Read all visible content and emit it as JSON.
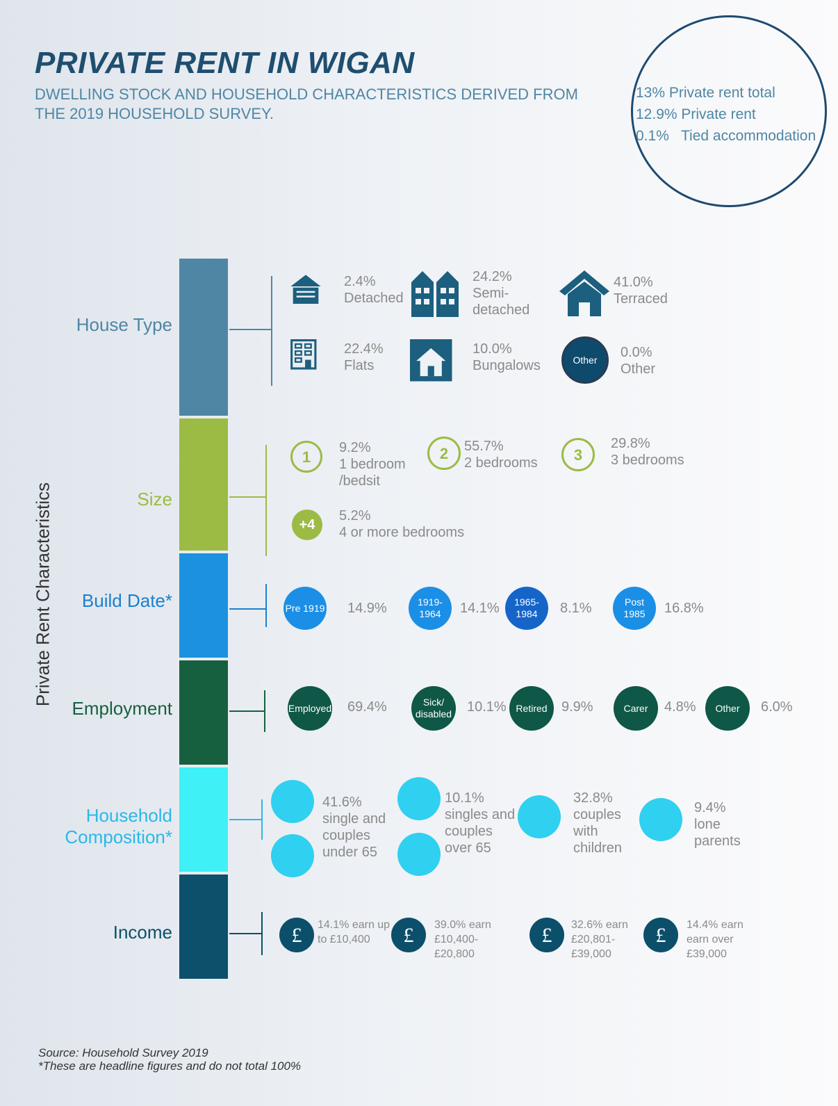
{
  "header": {
    "title": "PRIVATE RENT IN WIGAN",
    "subtitle": "DWELLING STOCK AND HOUSEHOLD CHARACTERISTICS DERIVED FROM THE 2019 HOUSEHOLD SURVEY."
  },
  "summary": [
    "13% Private rent total",
    "12.9% Private rent",
    "0.1%   Tied accommodation"
  ],
  "axis_label": "Private Rent Characteristics",
  "sections": [
    {
      "label": "House Type",
      "items": [
        {
          "value": "2.4%",
          "label": "Detached"
        },
        {
          "value": "24.2%",
          "label": "Semi-detached"
        },
        {
          "value": "41.0%",
          "label": "Terraced"
        },
        {
          "value": "22.4%",
          "label": "Flats"
        },
        {
          "value": "10.0%",
          "label": "Bungalows"
        },
        {
          "badge": "Other",
          "value": "0.0%",
          "label": "Other"
        }
      ]
    },
    {
      "label": "Size",
      "items": [
        {
          "badge": "1",
          "value": "9.2%",
          "label": "1 bedroom /bedsit"
        },
        {
          "badge": "2",
          "value": "55.7%",
          "label": "2 bedrooms"
        },
        {
          "badge": "3",
          "value": "29.8%",
          "label": "3 bedrooms"
        },
        {
          "badge": "+4",
          "value": "5.2%",
          "label": "4 or more bedrooms"
        }
      ]
    },
    {
      "label": "Build Date*",
      "items": [
        {
          "badge": "Pre 1919",
          "value": "14.9%"
        },
        {
          "badge": "1919-1964",
          "value": "14.1%"
        },
        {
          "badge": "1965-1984",
          "value": "8.1%"
        },
        {
          "badge": "Post 1985",
          "value": "16.8%"
        }
      ]
    },
    {
      "label": "Employment",
      "items": [
        {
          "badge": "Employed",
          "value": "69.4%"
        },
        {
          "badge": "Sick/ disabled",
          "value": "10.1%"
        },
        {
          "badge": "Retired",
          "value": "9.9%"
        },
        {
          "badge": "Carer",
          "value": "4.8%"
        },
        {
          "badge": "Other",
          "value": "6.0%"
        }
      ]
    },
    {
      "label": "Household Composition*",
      "items": [
        {
          "value": "41.6%",
          "label": "single and couples under 65"
        },
        {
          "value": "10.1%",
          "label": "singles and couples over 65"
        },
        {
          "value": "32.8%",
          "label": "couples with children"
        },
        {
          "value": "9.4%",
          "label": "lone parents"
        }
      ]
    },
    {
      "label": "Income",
      "items": [
        {
          "badge": "£",
          "value": "14.1% earn up to £10,400"
        },
        {
          "badge": "£",
          "value": "39.0% earn £10,400-£20,800"
        },
        {
          "badge": "£",
          "value": "32.6% earn £20,801-£39,000"
        },
        {
          "badge": "£",
          "value": "14.4% earn earn over £39,000"
        }
      ]
    }
  ],
  "footer": {
    "source": "Source: Household Survey 2019",
    "note": "*These are headline figures and do not total 100%"
  }
}
